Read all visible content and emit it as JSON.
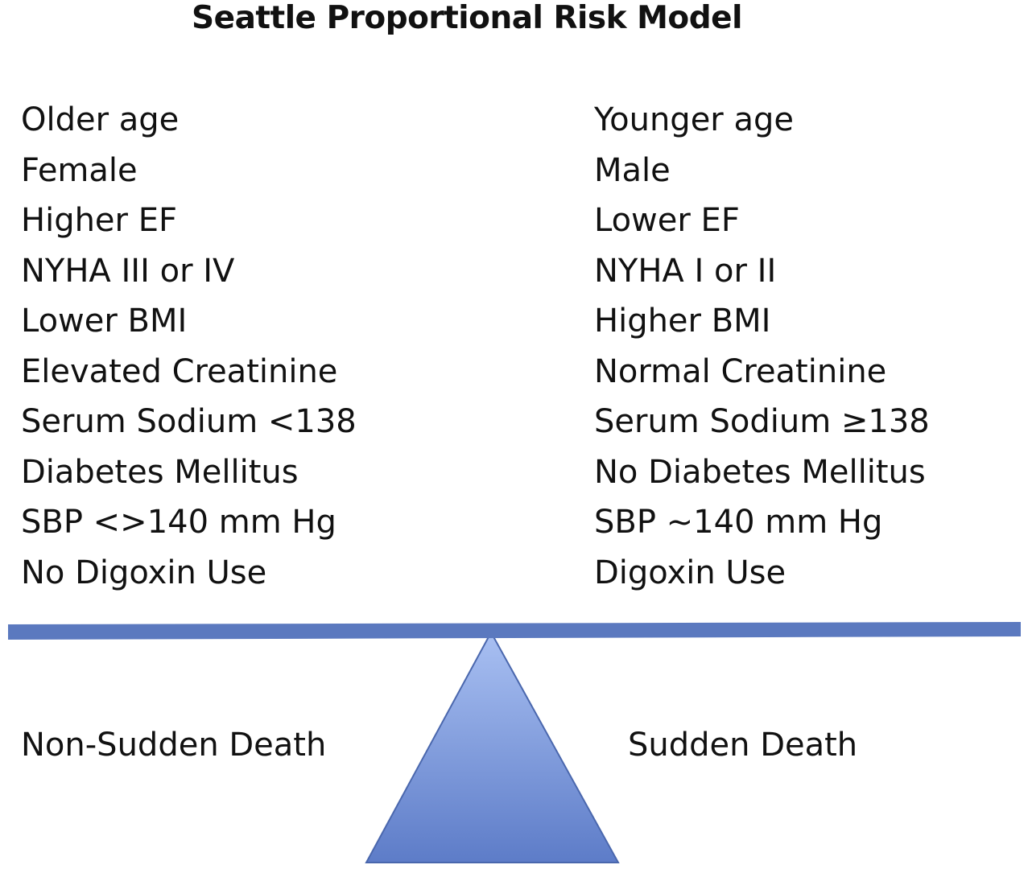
{
  "diagram": {
    "title": "Seattle Proportional Risk Model",
    "left_factors": [
      "Older age",
      "Female",
      "Higher EF",
      "NYHA III or IV",
      "Lower BMI",
      "Elevated Creatinine",
      "Serum Sodium <138",
      "Diabetes Mellitus",
      "SBP <>140 mm Hg",
      "No Digoxin Use"
    ],
    "right_factors": [
      "Younger age",
      "Male",
      "Lower EF",
      "NYHA I or II",
      "Higher BMI",
      "Normal Creatinine",
      "Serum Sodium ≥138",
      "No Diabetes Mellitus",
      "SBP ~140 mm Hg",
      "Digoxin Use"
    ],
    "left_outcome": "Non-Sudden Death",
    "right_outcome": "Sudden Death",
    "colors": {
      "beam": "#5b79bf",
      "fulcrum_top": "#a9c0f2",
      "fulcrum_bottom": "#5d7cc8",
      "fulcrum_stroke": "#4a67ad"
    }
  }
}
